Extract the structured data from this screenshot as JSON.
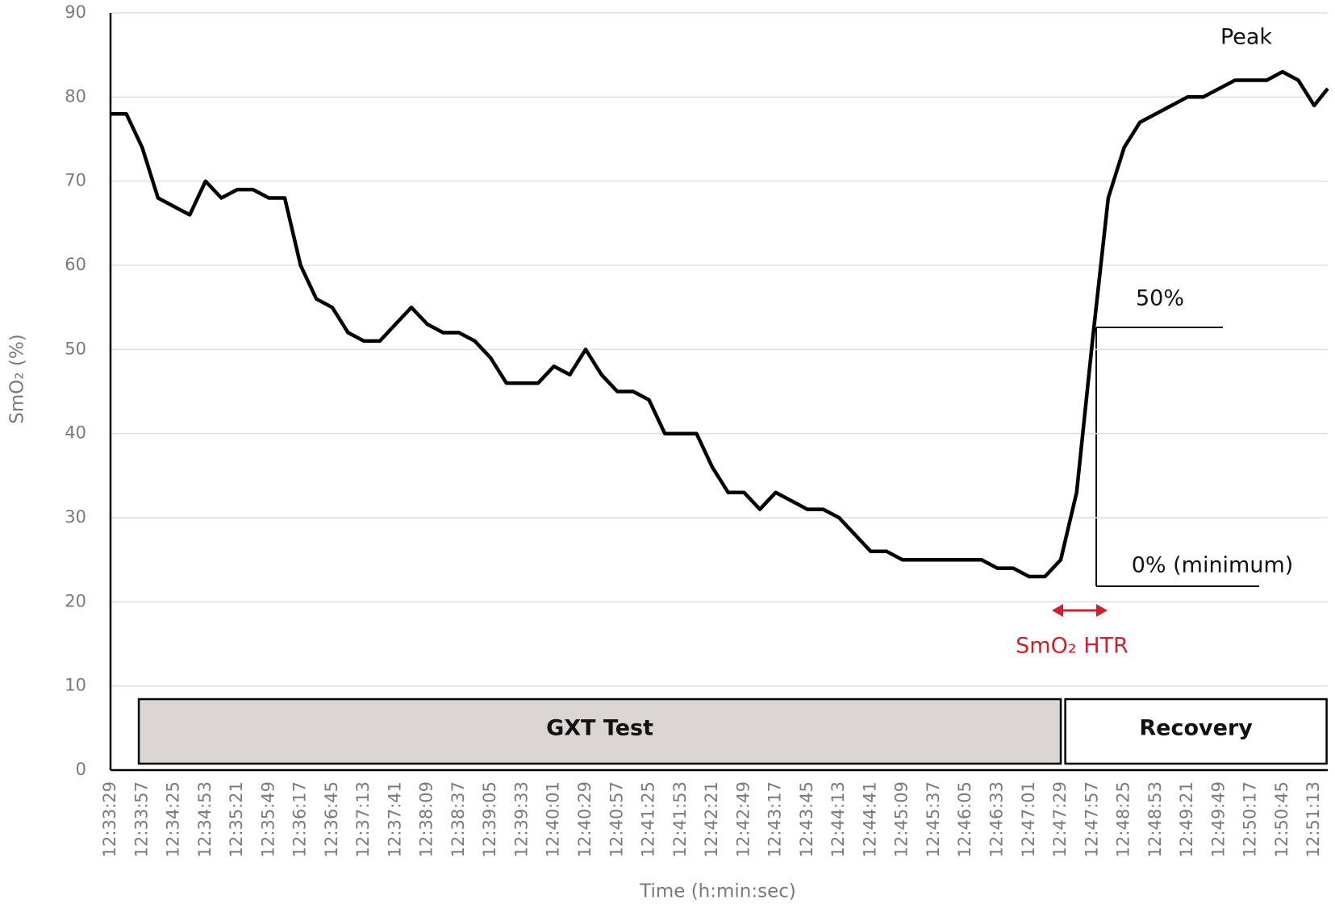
{
  "chart_data": {
    "type": "line",
    "x_label": "Time (h:min:sec)",
    "y_label": "SmO₂ (%)",
    "color": "#000000",
    "grid": true,
    "x": [
      "12:33:29",
      "12:33:43",
      "12:33:57",
      "12:34:11",
      "12:34:25",
      "12:34:39",
      "12:34:53",
      "12:35:07",
      "12:35:21",
      "12:35:35",
      "12:35:49",
      "12:36:03",
      "12:36:17",
      "12:36:31",
      "12:36:45",
      "12:36:59",
      "12:37:13",
      "12:37:27",
      "12:37:41",
      "12:37:55",
      "12:38:09",
      "12:38:23",
      "12:38:37",
      "12:38:51",
      "12:39:05",
      "12:39:19",
      "12:39:33",
      "12:39:47",
      "12:40:01",
      "12:40:15",
      "12:40:29",
      "12:40:43",
      "12:40:57",
      "12:41:11",
      "12:41:25",
      "12:41:39",
      "12:41:53",
      "12:42:07",
      "12:42:21",
      "12:42:35",
      "12:42:49",
      "12:43:03",
      "12:43:17",
      "12:43:31",
      "12:43:45",
      "12:43:59",
      "12:44:13",
      "12:44:27",
      "12:44:41",
      "12:44:55",
      "12:45:09",
      "12:45:23",
      "12:45:37",
      "12:45:51",
      "12:46:05",
      "12:46:19",
      "12:46:33",
      "12:46:47",
      "12:47:01",
      "12:47:15",
      "12:47:29",
      "12:47:43",
      "12:47:57",
      "12:48:11",
      "12:48:25",
      "12:48:39",
      "12:48:53",
      "12:49:07",
      "12:49:21",
      "12:49:35",
      "12:49:49",
      "12:50:03",
      "12:50:17",
      "12:50:31",
      "12:50:45",
      "12:50:59",
      "12:51:13",
      "12:51:25"
    ],
    "values": [
      78,
      78,
      74,
      68,
      67,
      66,
      70,
      68,
      69,
      69,
      68,
      68,
      60,
      56,
      55,
      52,
      51,
      51,
      53,
      55,
      53,
      52,
      52,
      51,
      49,
      46,
      46,
      46,
      48,
      47,
      50,
      47,
      45,
      45,
      44,
      40,
      40,
      40,
      36,
      33,
      33,
      31,
      33,
      32,
      31,
      31,
      30,
      28,
      26,
      26,
      25,
      25,
      25,
      25,
      25,
      25,
      24,
      24,
      23,
      23,
      25,
      33,
      51,
      68,
      74,
      77,
      78,
      79,
      80,
      80,
      81,
      82,
      82,
      82,
      83,
      82,
      79,
      81
    ],
    "xlim": [
      "12:33:29",
      "12:51:25"
    ],
    "xticks": [
      "12:33:29",
      "12:33:57",
      "12:34:25",
      "12:34:53",
      "12:35:21",
      "12:35:49",
      "12:36:17",
      "12:36:45",
      "12:37:13",
      "12:37:41",
      "12:38:09",
      "12:38:37",
      "12:39:05",
      "12:39:33",
      "12:40:01",
      "12:40:29",
      "12:40:57",
      "12:41:25",
      "12:41:53",
      "12:42:21",
      "12:42:49",
      "12:43:17",
      "12:43:45",
      "12:44:13",
      "12:44:41",
      "12:45:09",
      "12:45:37",
      "12:46:05",
      "12:46:33",
      "12:47:01",
      "12:47:29",
      "12:47:57",
      "12:48:25",
      "12:48:53",
      "12:49:21",
      "12:49:49",
      "12:50:17",
      "12:50:45",
      "12:51:13"
    ],
    "ylim": [
      0,
      90
    ],
    "yticks": [
      0,
      10,
      20,
      30,
      40,
      50,
      60,
      70,
      80,
      90
    ],
    "phases": [
      {
        "label": "GXT Test",
        "start": "12:33:54",
        "end": "12:47:29",
        "fill": "#d9d6d4"
      },
      {
        "label": "Recovery",
        "start": "12:47:33",
        "end": "12:51:24",
        "fill": "#ffffff"
      }
    ],
    "annotations": {
      "peak": "Peak",
      "half": "50%",
      "minimum": "0% (minimum)",
      "htr": "SmO₂ HTR"
    }
  }
}
